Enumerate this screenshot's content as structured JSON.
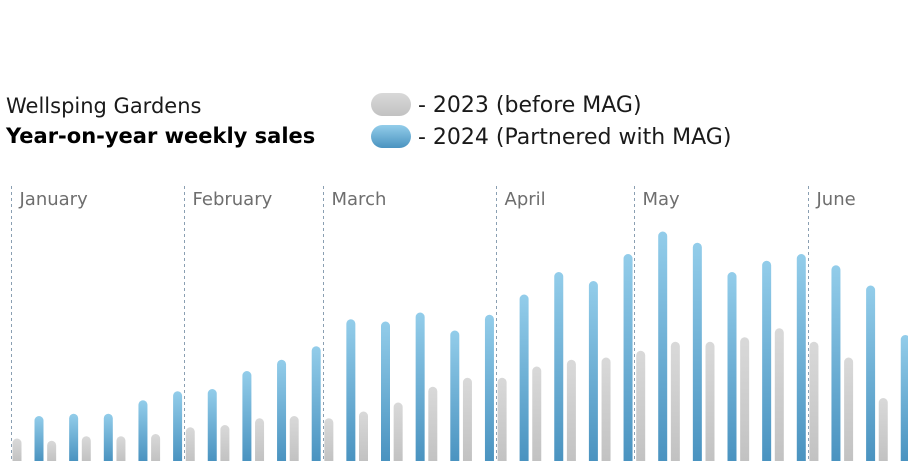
{
  "chart_data": {
    "type": "bar",
    "subtitle": "Wellsping Gardens",
    "title": "Year-on-year weekly sales",
    "legend_position": "top",
    "grid": false,
    "ylim": [
      0,
      100
    ],
    "months": [
      {
        "name": "January",
        "weeks": 5
      },
      {
        "name": "February",
        "weeks": 4
      },
      {
        "name": "March",
        "weeks": 5
      },
      {
        "name": "April",
        "weeks": 4
      },
      {
        "name": "May",
        "weeks": 5
      },
      {
        "name": "June",
        "weeks": 3
      }
    ],
    "series": [
      {
        "name": "- 2023 (before MAG)",
        "color": "#d4d4d4",
        "values": [
          10,
          9,
          11,
          11,
          12,
          15,
          16,
          19,
          20,
          19,
          22,
          26,
          33,
          37,
          37,
          42,
          45,
          46,
          49,
          53,
          53,
          55,
          59,
          53,
          46,
          28
        ]
      },
      {
        "name": "- 2024 (Partnered with MAG)",
        "color": "#72b5dd",
        "values": [
          20,
          21,
          21,
          27,
          31,
          32,
          40,
          45,
          51,
          63,
          62,
          66,
          58,
          65,
          74,
          84,
          80,
          92,
          102,
          97,
          84,
          89,
          92,
          87,
          78,
          56
        ]
      }
    ]
  }
}
